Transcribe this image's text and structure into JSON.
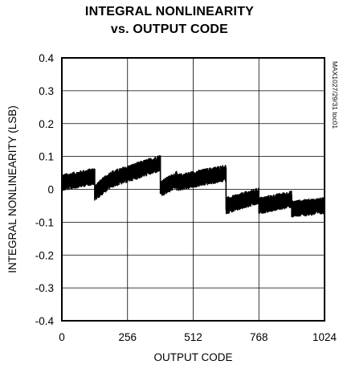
{
  "chart_data": {
    "type": "line",
    "title_lines": [
      "INTEGRAL NONLINEARITY",
      "vs. OUTPUT CODE"
    ],
    "xlabel": "OUTPUT CODE",
    "ylabel": "INTEGRAL NONLINEARITY (LSB)",
    "side_label": "MAX1027/29/31 toc01",
    "xlim": [
      0,
      1024
    ],
    "ylim": [
      -0.4,
      0.4
    ],
    "xticks": [
      0,
      256,
      512,
      768,
      1024
    ],
    "xtick_labels": [
      "0",
      "256",
      "512",
      "768",
      "1024"
    ],
    "yticks": [
      0.4,
      0.3,
      0.2,
      0.1,
      0,
      -0.1,
      -0.2,
      -0.3,
      -0.4
    ],
    "ytick_labels": [
      "0.4",
      "0.3",
      "0.2",
      "0.1",
      "0",
      "-0.1",
      "-0.2",
      "-0.3",
      "-0.4"
    ],
    "grid": true,
    "series_color": "#000000",
    "segments": [
      {
        "x": [
          0,
          128
        ],
        "y_start": 0.02,
        "y_end": 0.04,
        "noise": 0.025
      },
      {
        "x": [
          128,
          192
        ],
        "y_start": -0.01,
        "y_end": 0.03,
        "noise": 0.025
      },
      {
        "x": [
          192,
          384
        ],
        "y_start": 0.03,
        "y_end": 0.08,
        "noise": 0.025
      },
      {
        "x": [
          384,
          448
        ],
        "y_start": 0.0,
        "y_end": 0.03,
        "noise": 0.025
      },
      {
        "x": [
          448,
          640
        ],
        "y_start": 0.02,
        "y_end": 0.05,
        "noise": 0.025
      },
      {
        "x": [
          640,
          768
        ],
        "y_start": -0.05,
        "y_end": -0.02,
        "noise": 0.025
      },
      {
        "x": [
          768,
          896
        ],
        "y_start": -0.05,
        "y_end": -0.03,
        "noise": 0.025
      },
      {
        "x": [
          896,
          1024
        ],
        "y_start": -0.06,
        "y_end": -0.05,
        "noise": 0.025
      }
    ]
  }
}
